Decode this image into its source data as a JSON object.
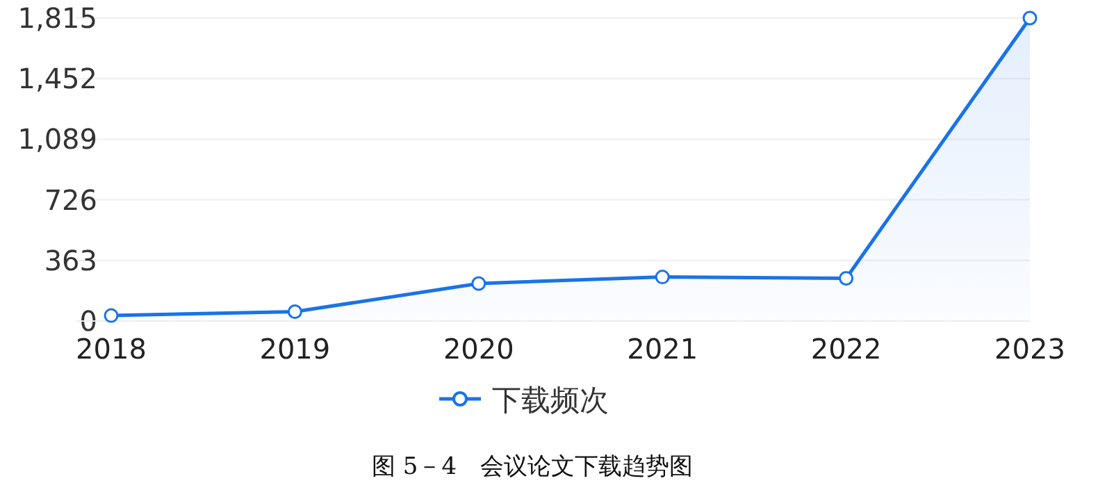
{
  "chart_data": {
    "type": "area",
    "categories": [
      "2018",
      "2019",
      "2020",
      "2021",
      "2022",
      "2023"
    ],
    "series": [
      {
        "name": "下载频次",
        "color": "#1a73e8",
        "values": [
          33,
          56,
          225,
          264,
          256,
          1815
        ]
      }
    ],
    "ylim": [
      0,
      1815
    ],
    "yticks": [
      0,
      {
        "value": 363,
        "label": "363"
      },
      {
        "value": 726,
        "label": "726"
      },
      {
        "value": 1089,
        "label": "1,089"
      },
      {
        "value": 1452,
        "label": "1,452"
      },
      {
        "value": 1815,
        "label": "1,815"
      }
    ],
    "grid": "y",
    "marker": "circle",
    "legend": "bottom",
    "annotations": [
      "图 5－4　会议论文下载趋势图"
    ]
  }
}
